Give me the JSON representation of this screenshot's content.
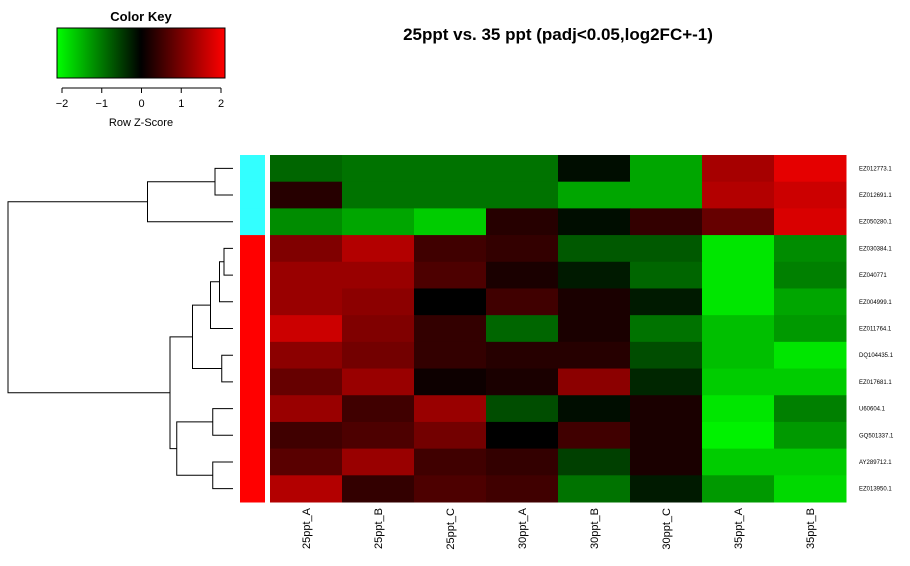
{
  "chart_data": {
    "type": "heatmap",
    "title": "25ppt vs. 35 ppt (padj<0.05,log2FC+-1)",
    "columns": [
      "25ppt_A",
      "25ppt_B",
      "25ppt_C",
      "30ppt_A",
      "30ppt_B",
      "30ppt_C",
      "35ppt_A",
      "35ppt_B"
    ],
    "rows": [
      "EZ012773.1",
      "EZ012691.1",
      "EZ050280.1",
      "EZ030384.1",
      "EZ040771",
      "EZ004999.1",
      "EZ011764.1",
      "DQ104435.1",
      "EZ017681.1",
      "U60604.1",
      "GQ501337.1",
      "AY289712.1",
      "EZ013950.1"
    ],
    "row_groups": {
      "colors": [
        "#33ffff",
        "#ff0000"
      ],
      "assignment": [
        0,
        0,
        0,
        1,
        1,
        1,
        1,
        1,
        1,
        1,
        1,
        1,
        1
      ]
    },
    "values": [
      [
        -0.8,
        -0.9,
        -0.9,
        -0.9,
        -0.1,
        -1.3,
        1.3,
        1.8
      ],
      [
        0.3,
        -0.9,
        -0.9,
        -0.9,
        -1.3,
        -1.3,
        1.4,
        1.6
      ],
      [
        -1.1,
        -1.3,
        -1.6,
        0.3,
        -0.1,
        0.4,
        0.8,
        1.7
      ],
      [
        1.0,
        1.4,
        0.5,
        0.4,
        -0.7,
        -0.7,
        -1.8,
        -1.1
      ],
      [
        1.2,
        1.2,
        0.6,
        0.2,
        -0.2,
        -0.8,
        -1.8,
        -1.0
      ],
      [
        1.2,
        1.1,
        0.0,
        0.5,
        0.2,
        -0.2,
        -1.8,
        -1.3
      ],
      [
        1.6,
        1.0,
        0.4,
        -0.8,
        0.2,
        -0.9,
        -1.5,
        -1.2
      ],
      [
        1.1,
        0.9,
        0.4,
        0.3,
        0.3,
        -0.6,
        -1.5,
        -1.8
      ],
      [
        0.8,
        1.2,
        0.1,
        0.2,
        1.1,
        -0.3,
        -1.6,
        -1.6
      ],
      [
        1.2,
        0.5,
        1.2,
        -0.6,
        -0.1,
        0.2,
        -1.8,
        -1.0
      ],
      [
        0.5,
        0.6,
        0.9,
        0.0,
        0.5,
        0.2,
        -1.9,
        -1.2
      ],
      [
        0.7,
        1.2,
        0.5,
        0.4,
        -0.5,
        0.2,
        -1.6,
        -1.6
      ],
      [
        1.4,
        0.4,
        0.6,
        0.5,
        -0.9,
        -0.2,
        -1.2,
        -1.7
      ]
    ],
    "color_scale": {
      "min": -2,
      "max": 2,
      "low": "#00ff00",
      "mid": "#000000",
      "high": "#ff0000"
    },
    "color_key": {
      "title": "Color Key",
      "xlabel": "Row Z-Score",
      "ticks": [
        -2,
        -1,
        0,
        1,
        2
      ]
    },
    "row_dendrogram": {
      "order": [
        0,
        1,
        2,
        3,
        4,
        5,
        6,
        7,
        8,
        9,
        10,
        11,
        12
      ],
      "merges": [
        [
          0,
          1
        ],
        [
          3,
          4
        ],
        [
          7,
          8
        ],
        [
          9,
          10
        ],
        [
          11,
          12
        ],
        [
          -2,
          5
        ],
        [
          -6,
          6
        ],
        [
          -7,
          -3
        ],
        [
          -4,
          -5
        ],
        [
          -1,
          2
        ],
        [
          -8,
          -9
        ],
        [
          -10,
          -11
        ]
      ],
      "heights": [
        0.08,
        0.04,
        0.05,
        0.09,
        0.09,
        0.06,
        0.1,
        0.18,
        0.25,
        0.38,
        0.28,
        1.0
      ]
    }
  }
}
